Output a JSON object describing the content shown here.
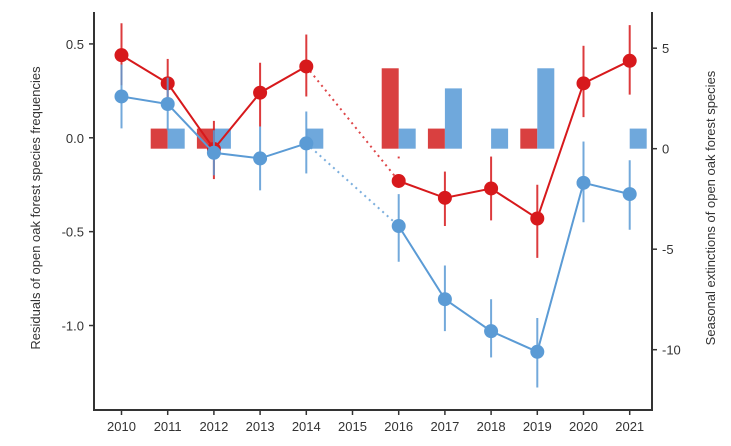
{
  "chart_data": {
    "type": "line",
    "title": "",
    "x": [
      2010,
      2011,
      2012,
      2013,
      2014,
      2015,
      2016,
      2017,
      2018,
      2019,
      2020,
      2021
    ],
    "x_tick_labels": [
      "2010",
      "2011",
      "2012",
      "2013",
      "2014",
      "2015",
      "2016",
      "2017",
      "2018",
      "2019",
      "2020",
      "2021"
    ],
    "ylabel_left": "Residuals of open oak forest species frequencies",
    "ylabel_right": "Seasonal extinctions of open oak forest species",
    "ylim_left": [
      -1.45,
      0.67
    ],
    "ylim_right": [
      -13.0,
      6.8
    ],
    "y_ticks_left": [
      0.5,
      0.0,
      -0.5,
      -1.0
    ],
    "y_tick_labels_left": [
      "0.5",
      "0.0",
      "-0.5",
      "-1.0"
    ],
    "y_ticks_right": [
      5,
      0,
      -5,
      -10
    ],
    "y_tick_labels_right": [
      "5",
      "0",
      "-5",
      "-10"
    ],
    "grid": false,
    "colors": {
      "red": "#d7191c",
      "blue": "#5b9bd5",
      "red_bar": "#d94040",
      "blue_bar": "#6fa8dc"
    },
    "series": [
      {
        "color": "red",
        "axis": "left",
        "x": [
          2010,
          2011,
          2012,
          2013,
          2014,
          2016,
          2017,
          2018,
          2019,
          2020,
          2021
        ],
        "y": [
          0.44,
          0.29,
          -0.06,
          0.24,
          0.38,
          -0.23,
          -0.32,
          -0.27,
          -0.43,
          0.29,
          0.41
        ],
        "err_low": [
          0.28,
          0.16,
          -0.22,
          0.06,
          0.22,
          -0.11,
          -0.47,
          -0.44,
          -0.64,
          0.11,
          0.23
        ],
        "err_high": [
          0.61,
          0.42,
          0.09,
          0.4,
          0.55,
          -0.1,
          -0.18,
          -0.1,
          -0.25,
          0.49,
          0.6
        ]
      },
      {
        "color": "blue",
        "axis": "left",
        "x": [
          2010,
          2011,
          2012,
          2013,
          2014,
          2016,
          2017,
          2018,
          2019,
          2020,
          2021
        ],
        "y": [
          0.22,
          0.18,
          -0.08,
          -0.11,
          -0.03,
          -0.47,
          -0.86,
          -1.03,
          -1.14,
          -0.24,
          -0.3
        ],
        "err_low": [
          0.05,
          0.04,
          -0.2,
          -0.28,
          -0.19,
          -0.66,
          -1.03,
          -1.17,
          -1.33,
          -0.45,
          -0.49
        ],
        "err_high": [
          0.39,
          0.32,
          0.04,
          0.06,
          0.14,
          -0.3,
          -0.68,
          -0.86,
          -0.96,
          -0.02,
          -0.12
        ]
      }
    ],
    "bars": [
      {
        "color": "red",
        "axis": "right",
        "x": [
          2011,
          2012,
          2016,
          2017,
          2019
        ],
        "values": [
          1,
          1,
          4,
          1,
          1
        ]
      },
      {
        "color": "blue",
        "axis": "right",
        "x": [
          2011,
          2012,
          2014,
          2016,
          2017,
          2018,
          2019,
          2021
        ],
        "values": [
          1,
          1,
          1,
          1,
          3,
          1,
          4,
          1
        ]
      }
    ]
  }
}
